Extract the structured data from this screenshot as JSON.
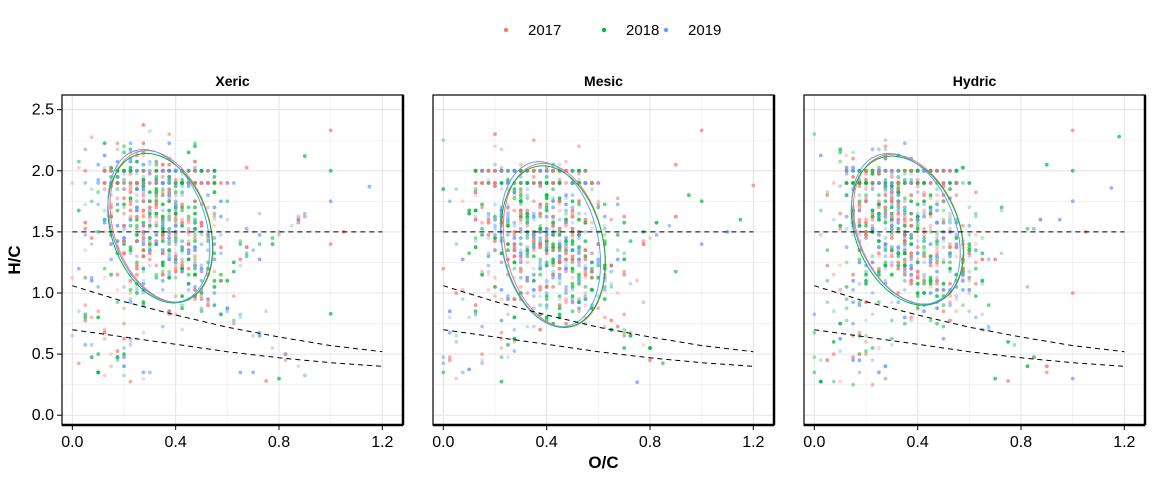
{
  "chart_data": {
    "type": "scatter",
    "title": "",
    "xlabel": "O/C",
    "ylabel": "H/C",
    "xlim": [
      -0.04,
      1.28
    ],
    "ylim": [
      -0.08,
      2.62
    ],
    "x_ticks": [
      {
        "value": 0.0,
        "label": "0.0"
      },
      {
        "value": 0.4,
        "label": "0.4"
      },
      {
        "value": 0.8,
        "label": "0.8"
      },
      {
        "value": 1.2,
        "label": "1.2"
      }
    ],
    "y_ticks": [
      {
        "value": 0.0,
        "label": "0.0"
      },
      {
        "value": 0.5,
        "label": "0.5"
      },
      {
        "value": 1.0,
        "label": "1.0"
      },
      {
        "value": 1.5,
        "label": "1.5"
      },
      {
        "value": 2.0,
        "label": "2.0"
      },
      {
        "value": 2.5,
        "label": "2.5"
      }
    ],
    "grid": true,
    "legend_position": "top",
    "series": [
      {
        "name": "2017",
        "color": "#F8766D"
      },
      {
        "name": "2018",
        "color": "#00BA38"
      },
      {
        "name": "2019",
        "color": "#619CFF"
      }
    ],
    "reference_lines": {
      "horizontal": {
        "y": 1.5,
        "x_range": [
          0.0,
          1.2
        ]
      },
      "upper_curve": [
        [
          0.0,
          1.06
        ],
        [
          0.2,
          0.93
        ],
        [
          0.4,
          0.82
        ],
        [
          0.6,
          0.72
        ],
        [
          0.8,
          0.64
        ],
        [
          1.0,
          0.57
        ],
        [
          1.2,
          0.52
        ]
      ],
      "lower_curve": [
        [
          0.0,
          0.7
        ],
        [
          0.2,
          0.64
        ],
        [
          0.4,
          0.58
        ],
        [
          0.6,
          0.52
        ],
        [
          0.8,
          0.47
        ],
        [
          1.0,
          0.43
        ],
        [
          1.2,
          0.4
        ]
      ]
    },
    "facets": [
      {
        "title": "Xeric",
        "cluster": {
          "cx": 0.34,
          "cy": 1.55
        },
        "ellipses": [
          {
            "series": "2017",
            "cx": 0.345,
            "cy": 1.545,
            "rx": 0.185,
            "ry": 0.64,
            "angle": -18
          },
          {
            "series": "2018",
            "cx": 0.34,
            "cy": 1.53,
            "rx": 0.19,
            "ry": 0.63,
            "angle": -18
          },
          {
            "series": "2019",
            "cx": 0.335,
            "cy": 1.55,
            "rx": 0.182,
            "ry": 0.645,
            "angle": -18
          }
        ],
        "outliers": [
          [
            1.0,
            2.33
          ],
          [
            1.0,
            2.0
          ],
          [
            1.0,
            1.75
          ],
          [
            1.0,
            1.4
          ],
          [
            1.0,
            0.83
          ],
          [
            1.15,
            1.87
          ],
          [
            1.05,
            1.5
          ],
          [
            0.9,
            2.12
          ],
          [
            0.7,
            0.35
          ],
          [
            0.75,
            0.28
          ],
          [
            0.8,
            0.3
          ],
          [
            0.65,
            0.35
          ]
        ]
      },
      {
        "title": "Mesic",
        "cluster": {
          "cx": 0.4,
          "cy": 1.42
        },
        "ellipses": [
          {
            "series": "2017",
            "cx": 0.43,
            "cy": 1.39,
            "rx": 0.19,
            "ry": 0.68,
            "angle": -12
          },
          {
            "series": "2018",
            "cx": 0.425,
            "cy": 1.38,
            "rx": 0.195,
            "ry": 0.67,
            "angle": -12
          },
          {
            "series": "2019",
            "cx": 0.415,
            "cy": 1.4,
            "rx": 0.186,
            "ry": 0.685,
            "angle": -12
          }
        ],
        "outliers": [
          [
            1.0,
            2.33
          ],
          [
            1.0,
            1.75
          ],
          [
            1.0,
            1.4
          ],
          [
            1.2,
            1.88
          ],
          [
            1.15,
            1.6
          ],
          [
            1.1,
            1.5
          ],
          [
            0.9,
            2.05
          ],
          [
            0.95,
            1.8
          ],
          [
            0.75,
            0.27
          ],
          [
            0.8,
            0.45
          ],
          [
            0.7,
            0.55
          ]
        ]
      },
      {
        "title": "Hydric",
        "cluster": {
          "cx": 0.36,
          "cy": 1.5
        },
        "ellipses": [
          {
            "series": "2017",
            "cx": 0.365,
            "cy": 1.52,
            "rx": 0.195,
            "ry": 0.64,
            "angle": -22
          },
          {
            "series": "2018",
            "cx": 0.36,
            "cy": 1.51,
            "rx": 0.2,
            "ry": 0.635,
            "angle": -22
          },
          {
            "series": "2019",
            "cx": 0.355,
            "cy": 1.525,
            "rx": 0.19,
            "ry": 0.645,
            "angle": -22
          }
        ],
        "outliers": [
          [
            1.0,
            2.33
          ],
          [
            1.0,
            2.0
          ],
          [
            1.0,
            1.75
          ],
          [
            1.0,
            1.0
          ],
          [
            1.18,
            2.28
          ],
          [
            1.15,
            1.86
          ],
          [
            1.05,
            1.5
          ],
          [
            0.9,
            2.05
          ],
          [
            0.95,
            1.6
          ],
          [
            0.75,
            0.28
          ],
          [
            0.7,
            0.3
          ],
          [
            1.0,
            0.3
          ]
        ]
      }
    ]
  }
}
